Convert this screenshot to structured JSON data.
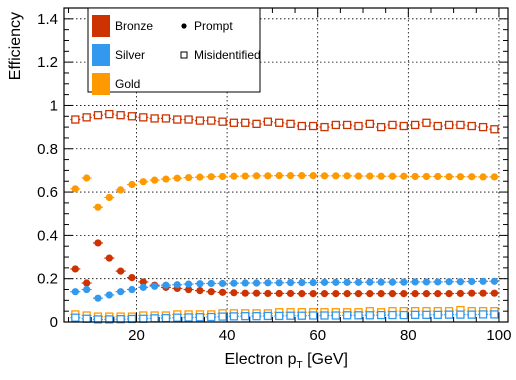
{
  "chart_data": {
    "type": "scatter",
    "title": "",
    "xlabel": {
      "main": "Electron p",
      "sub": "T",
      "unit": " [GeV]"
    },
    "ylabel": "Efficiency",
    "xlim": [
      4,
      102
    ],
    "ylim": [
      0,
      1.45
    ],
    "x_ticks": [
      20,
      40,
      60,
      80,
      100
    ],
    "y_ticks": [
      0,
      0.2,
      0.4,
      0.6,
      0.8,
      1,
      1.2,
      1.4
    ],
    "y_tick_labels": [
      "0",
      "0.2",
      "0.4",
      "0.6",
      "0.8",
      "1",
      "1.2",
      "1.4"
    ],
    "grid": true,
    "legend_position": "top-left",
    "legend": {
      "colors": [
        {
          "name": "Bronze",
          "color": "#cc3300"
        },
        {
          "name": "Silver",
          "color": "#3399ee"
        },
        {
          "name": "Gold",
          "color": "#ff9900"
        }
      ],
      "markers": [
        {
          "name": "Prompt",
          "marker": "filled-circle"
        },
        {
          "name": "Misidentified",
          "marker": "open-square"
        }
      ]
    },
    "series": [
      {
        "name": "Bronze",
        "color": "#cc3300",
        "marker": "filled-circle",
        "points": [
          [
            6.5,
            0.245
          ],
          [
            9,
            0.18
          ],
          [
            11.5,
            0.365
          ],
          [
            14,
            0.295
          ],
          [
            16.5,
            0.235
          ],
          [
            19,
            0.205
          ],
          [
            21.5,
            0.185
          ],
          [
            24,
            0.17
          ],
          [
            26.5,
            0.16
          ],
          [
            29,
            0.155
          ],
          [
            31.5,
            0.15
          ],
          [
            34,
            0.145
          ],
          [
            36.5,
            0.14
          ],
          [
            39,
            0.137
          ],
          [
            41.5,
            0.135
          ],
          [
            44,
            0.133
          ],
          [
            46.5,
            0.133
          ],
          [
            49,
            0.132
          ],
          [
            51.5,
            0.132
          ],
          [
            54,
            0.132
          ],
          [
            56.5,
            0.131
          ],
          [
            59,
            0.131
          ],
          [
            61.5,
            0.131
          ],
          [
            64,
            0.131
          ],
          [
            66.5,
            0.131
          ],
          [
            69,
            0.131
          ],
          [
            71.5,
            0.131
          ],
          [
            74,
            0.131
          ],
          [
            76.5,
            0.131
          ],
          [
            79,
            0.131
          ],
          [
            81.5,
            0.131
          ],
          [
            84,
            0.131
          ],
          [
            86.5,
            0.131
          ],
          [
            89,
            0.131
          ],
          [
            91.5,
            0.132
          ],
          [
            94,
            0.133
          ],
          [
            96.5,
            0.133
          ],
          [
            99,
            0.133
          ]
        ]
      },
      {
        "name": "Silver",
        "color": "#3399ee",
        "marker": "filled-circle",
        "points": [
          [
            6.5,
            0.14
          ],
          [
            9,
            0.15
          ],
          [
            11.5,
            0.11
          ],
          [
            14,
            0.125
          ],
          [
            16.5,
            0.14
          ],
          [
            19,
            0.15
          ],
          [
            21.5,
            0.16
          ],
          [
            24,
            0.165
          ],
          [
            26.5,
            0.17
          ],
          [
            29,
            0.172
          ],
          [
            31.5,
            0.175
          ],
          [
            34,
            0.177
          ],
          [
            36.5,
            0.178
          ],
          [
            39,
            0.178
          ],
          [
            41.5,
            0.179
          ],
          [
            44,
            0.18
          ],
          [
            46.5,
            0.18
          ],
          [
            49,
            0.181
          ],
          [
            51.5,
            0.181
          ],
          [
            54,
            0.182
          ],
          [
            56.5,
            0.182
          ],
          [
            59,
            0.182
          ],
          [
            61.5,
            0.183
          ],
          [
            64,
            0.183
          ],
          [
            66.5,
            0.183
          ],
          [
            69,
            0.183
          ],
          [
            71.5,
            0.184
          ],
          [
            74,
            0.184
          ],
          [
            76.5,
            0.184
          ],
          [
            79,
            0.184
          ],
          [
            81.5,
            0.185
          ],
          [
            84,
            0.185
          ],
          [
            86.5,
            0.185
          ],
          [
            89,
            0.186
          ],
          [
            91.5,
            0.186
          ],
          [
            94,
            0.187
          ],
          [
            96.5,
            0.188
          ],
          [
            99,
            0.188
          ]
        ]
      },
      {
        "name": "Gold",
        "color": "#ff9900",
        "marker": "filled-circle",
        "points": [
          [
            6.5,
            0.615
          ],
          [
            9,
            0.665
          ],
          [
            11.5,
            0.53
          ],
          [
            14,
            0.575
          ],
          [
            16.5,
            0.61
          ],
          [
            19,
            0.635
          ],
          [
            21.5,
            0.648
          ],
          [
            24,
            0.655
          ],
          [
            26.5,
            0.66
          ],
          [
            29,
            0.664
          ],
          [
            31.5,
            0.667
          ],
          [
            34,
            0.669
          ],
          [
            36.5,
            0.671
          ],
          [
            39,
            0.672
          ],
          [
            41.5,
            0.673
          ],
          [
            44,
            0.674
          ],
          [
            46.5,
            0.675
          ],
          [
            49,
            0.675
          ],
          [
            51.5,
            0.676
          ],
          [
            54,
            0.676
          ],
          [
            56.5,
            0.676
          ],
          [
            59,
            0.676
          ],
          [
            61.5,
            0.675
          ],
          [
            64,
            0.675
          ],
          [
            66.5,
            0.675
          ],
          [
            69,
            0.674
          ],
          [
            71.5,
            0.674
          ],
          [
            74,
            0.673
          ],
          [
            76.5,
            0.673
          ],
          [
            79,
            0.673
          ],
          [
            81.5,
            0.672
          ],
          [
            84,
            0.672
          ],
          [
            86.5,
            0.672
          ],
          [
            89,
            0.671
          ],
          [
            91.5,
            0.671
          ],
          [
            94,
            0.671
          ],
          [
            96.5,
            0.67
          ],
          [
            99,
            0.67
          ]
        ]
      },
      {
        "name": "Bronze",
        "color": "#cc3300",
        "marker": "open-square",
        "points": [
          [
            6.5,
            0.935
          ],
          [
            9,
            0.945
          ],
          [
            11.5,
            0.955
          ],
          [
            14,
            0.96
          ],
          [
            16.5,
            0.955
          ],
          [
            19,
            0.95
          ],
          [
            21.5,
            0.945
          ],
          [
            24,
            0.94
          ],
          [
            26.5,
            0.94
          ],
          [
            29,
            0.935
          ],
          [
            31.5,
            0.935
          ],
          [
            34,
            0.93
          ],
          [
            36.5,
            0.93
          ],
          [
            39,
            0.925
          ],
          [
            41.5,
            0.92
          ],
          [
            44,
            0.92
          ],
          [
            46.5,
            0.915
          ],
          [
            49,
            0.925
          ],
          [
            51.5,
            0.92
          ],
          [
            54,
            0.915
          ],
          [
            56.5,
            0.905
          ],
          [
            59,
            0.905
          ],
          [
            61.5,
            0.9
          ],
          [
            64,
            0.91
          ],
          [
            66.5,
            0.91
          ],
          [
            69,
            0.905
          ],
          [
            71.5,
            0.915
          ],
          [
            74,
            0.9
          ],
          [
            76.5,
            0.91
          ],
          [
            79,
            0.905
          ],
          [
            81.5,
            0.91
          ],
          [
            84,
            0.92
          ],
          [
            86.5,
            0.905
          ],
          [
            89,
            0.91
          ],
          [
            91.5,
            0.91
          ],
          [
            94,
            0.905
          ],
          [
            96.5,
            0.9
          ],
          [
            99,
            0.89
          ]
        ]
      },
      {
        "name": "Gold",
        "color": "#ff9900",
        "marker": "open-square",
        "points": [
          [
            6.5,
            0.035
          ],
          [
            9,
            0.03
          ],
          [
            11.5,
            0.025
          ],
          [
            14,
            0.025
          ],
          [
            16.5,
            0.025
          ],
          [
            19,
            0.025
          ],
          [
            21.5,
            0.03
          ],
          [
            24,
            0.03
          ],
          [
            26.5,
            0.03
          ],
          [
            29,
            0.035
          ],
          [
            31.5,
            0.035
          ],
          [
            34,
            0.035
          ],
          [
            36.5,
            0.035
          ],
          [
            39,
            0.04
          ],
          [
            41.5,
            0.04
          ],
          [
            44,
            0.04
          ],
          [
            46.5,
            0.04
          ],
          [
            49,
            0.04
          ],
          [
            51.5,
            0.045
          ],
          [
            54,
            0.045
          ],
          [
            56.5,
            0.045
          ],
          [
            59,
            0.045
          ],
          [
            61.5,
            0.045
          ],
          [
            64,
            0.045
          ],
          [
            66.5,
            0.045
          ],
          [
            69,
            0.045
          ],
          [
            71.5,
            0.05
          ],
          [
            74,
            0.045
          ],
          [
            76.5,
            0.05
          ],
          [
            79,
            0.05
          ],
          [
            81.5,
            0.05
          ],
          [
            84,
            0.05
          ],
          [
            86.5,
            0.05
          ],
          [
            89,
            0.05
          ],
          [
            91.5,
            0.055
          ],
          [
            94,
            0.05
          ],
          [
            96.5,
            0.05
          ],
          [
            99,
            0.05
          ]
        ]
      },
      {
        "name": "Silver",
        "color": "#3399ee",
        "marker": "open-square",
        "points": [
          [
            6.5,
            0.02
          ],
          [
            9,
            0.015
          ],
          [
            11.5,
            0.012
          ],
          [
            14,
            0.012
          ],
          [
            16.5,
            0.013
          ],
          [
            19,
            0.014
          ],
          [
            21.5,
            0.015
          ],
          [
            24,
            0.017
          ],
          [
            26.5,
            0.018
          ],
          [
            29,
            0.02
          ],
          [
            31.5,
            0.021
          ],
          [
            34,
            0.022
          ],
          [
            36.5,
            0.023
          ],
          [
            39,
            0.025
          ],
          [
            41.5,
            0.026
          ],
          [
            44,
            0.027
          ],
          [
            46.5,
            0.027
          ],
          [
            49,
            0.028
          ],
          [
            51.5,
            0.028
          ],
          [
            54,
            0.029
          ],
          [
            56.5,
            0.029
          ],
          [
            59,
            0.03
          ],
          [
            61.5,
            0.03
          ],
          [
            64,
            0.03
          ],
          [
            66.5,
            0.031
          ],
          [
            69,
            0.031
          ],
          [
            71.5,
            0.031
          ],
          [
            74,
            0.032
          ],
          [
            76.5,
            0.032
          ],
          [
            79,
            0.032
          ],
          [
            81.5,
            0.033
          ],
          [
            84,
            0.033
          ],
          [
            86.5,
            0.033
          ],
          [
            89,
            0.034
          ],
          [
            91.5,
            0.034
          ],
          [
            94,
            0.034
          ],
          [
            96.5,
            0.035
          ],
          [
            99,
            0.035
          ]
        ]
      }
    ]
  }
}
